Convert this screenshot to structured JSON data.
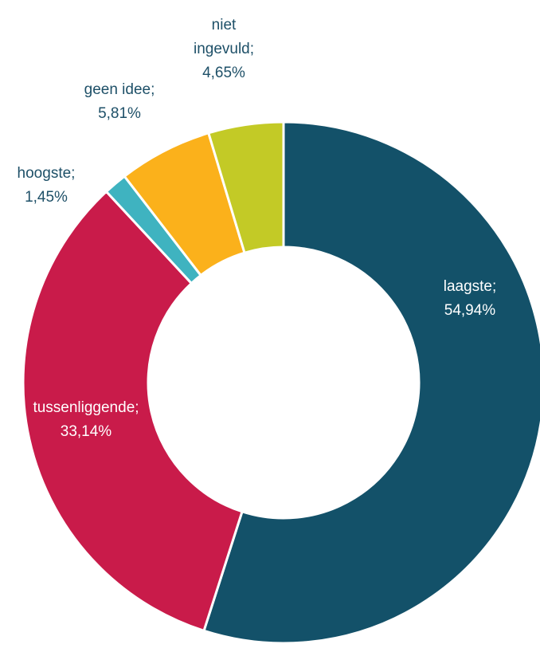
{
  "chart_data": {
    "type": "donut",
    "categories": [
      "laagste;",
      "tussenliggende;",
      "hoogste;",
      "geen idee;",
      "niet ingevuld;"
    ],
    "values": [
      54.94,
      33.14,
      1.45,
      5.81,
      4.65
    ],
    "value_labels": [
      "54,94%",
      "33,14%",
      "1,45%",
      "5,81%",
      "4,65%"
    ],
    "colors": [
      "#135169",
      "#c91b4a",
      "#3fb3c0",
      "#fbb11b",
      "#c3ca26"
    ]
  }
}
